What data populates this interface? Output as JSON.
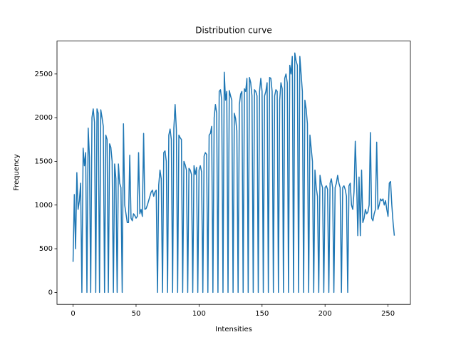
{
  "chart_data": {
    "type": "line",
    "title": "Distribution curve",
    "xlabel": "Intensities",
    "ylabel": "Frequency",
    "color": "#1f77b4",
    "x": [
      0,
      1,
      2,
      3,
      4,
      5,
      6,
      7,
      8,
      9,
      10,
      11,
      12,
      13,
      14,
      15,
      16,
      17,
      18,
      19,
      20,
      21,
      22,
      23,
      24,
      25,
      26,
      27,
      28,
      29,
      30,
      31,
      32,
      33,
      34,
      35,
      36,
      37,
      38,
      39,
      40,
      41,
      42,
      43,
      44,
      45,
      46,
      47,
      48,
      49,
      50,
      51,
      52,
      53,
      54,
      55,
      56,
      57,
      58,
      59,
      60,
      61,
      62,
      63,
      64,
      65,
      66,
      67,
      68,
      69,
      70,
      71,
      72,
      73,
      74,
      75,
      76,
      77,
      78,
      79,
      80,
      81,
      82,
      83,
      84,
      85,
      86,
      87,
      88,
      89,
      90,
      91,
      92,
      93,
      94,
      95,
      96,
      97,
      98,
      99,
      100,
      101,
      102,
      103,
      104,
      105,
      106,
      107,
      108,
      109,
      110,
      111,
      112,
      113,
      114,
      115,
      116,
      117,
      118,
      119,
      120,
      121,
      122,
      123,
      124,
      125,
      126,
      127,
      128,
      129,
      130,
      131,
      132,
      133,
      134,
      135,
      136,
      137,
      138,
      139,
      140,
      141,
      142,
      143,
      144,
      145,
      146,
      147,
      148,
      149,
      150,
      151,
      152,
      153,
      154,
      155,
      156,
      157,
      158,
      159,
      160,
      161,
      162,
      163,
      164,
      165,
      166,
      167,
      168,
      169,
      170,
      171,
      172,
      173,
      174,
      175,
      176,
      177,
      178,
      179,
      180,
      181,
      182,
      183,
      184,
      185,
      186,
      187,
      188,
      189,
      190,
      191,
      192,
      193,
      194,
      195,
      196,
      197,
      198,
      199,
      200,
      201,
      202,
      203,
      204,
      205,
      206,
      207,
      208,
      209,
      210,
      211,
      212,
      213,
      214,
      215,
      216,
      217,
      218,
      219,
      220,
      221,
      222,
      223,
      224,
      225,
      226,
      227,
      228,
      229,
      230,
      231,
      232,
      233,
      234,
      235,
      236,
      237,
      238,
      239,
      240,
      241,
      242,
      243,
      244,
      245,
      246,
      247,
      248,
      249,
      250,
      251,
      252,
      253,
      254,
      255
    ],
    "values": [
      350,
      1120,
      500,
      1370,
      950,
      1050,
      1250,
      0,
      1650,
      1450,
      1600,
      0,
      1880,
      1550,
      0,
      2000,
      2100,
      1950,
      0,
      2100,
      2050,
      0,
      2090,
      2000,
      1900,
      0,
      1800,
      1750,
      0,
      1700,
      1660,
      1500,
      0,
      1470,
      1300,
      0,
      1470,
      1250,
      1200,
      0,
      1930,
      1000,
      900,
      800,
      800,
      1570,
      850,
      820,
      900,
      880,
      850,
      870,
      1600,
      900,
      950,
      870,
      1820,
      950,
      960,
      1000,
      1050,
      1100,
      1150,
      1170,
      1100,
      1150,
      1170,
      0,
      1230,
      1400,
      1300,
      0,
      1600,
      1620,
      1500,
      0,
      1800,
      1870,
      1750,
      0,
      1880,
      2150,
      1860,
      0,
      1800,
      1770,
      1750,
      0,
      1500,
      1460,
      1400,
      0,
      1420,
      1400,
      1350,
      0,
      1450,
      1350,
      1430,
      0,
      1400,
      1450,
      1380,
      0,
      1560,
      1600,
      1580,
      0,
      1800,
      1820,
      1900,
      0,
      2000,
      2150,
      2050,
      0,
      2300,
      2320,
      2200,
      0,
      2520,
      2200,
      2300,
      0,
      2310,
      2250,
      2200,
      0,
      2050,
      1990,
      1850,
      0,
      2150,
      2270,
      2300,
      0,
      2330,
      2300,
      2450,
      0,
      2460,
      2400,
      2250,
      0,
      2320,
      2300,
      2250,
      0,
      2300,
      2450,
      2300,
      0,
      2250,
      2300,
      2400,
      0,
      2460,
      2450,
      2300,
      0,
      2250,
      2320,
      2300,
      0,
      2200,
      2400,
      2330,
      0,
      2450,
      2500,
      2400,
      0,
      2600,
      2500,
      2700,
      0,
      2740,
      2650,
      2600,
      0,
      2700,
      2500,
      2300,
      0,
      2200,
      2100,
      1930,
      0,
      1800,
      1650,
      1500,
      0,
      1400,
      1200,
      1100,
      0,
      1340,
      1250,
      1200,
      0,
      1200,
      1220,
      1180,
      0,
      1250,
      1300,
      1200,
      0,
      1200,
      1250,
      1340,
      1250,
      1200,
      0,
      1200,
      1220,
      1180,
      1100,
      0,
      1220,
      1250,
      1000,
      950,
      1150,
      1730,
      1300,
      650,
      1320,
      650,
      1400,
      800,
      850,
      950,
      900,
      920,
      1000,
      1830,
      850,
      820,
      900,
      950,
      1720,
      950,
      1000,
      1070,
      1050,
      1070,
      1000,
      1050,
      950,
      870,
      1250,
      1270,
      1000,
      800,
      650
    ],
    "xlim": [
      -12.75,
      267.75
    ],
    "xticks": [
      0,
      50,
      100,
      150,
      200,
      250
    ],
    "ylim": [
      -137,
      2877
    ],
    "yticks": [
      0,
      500,
      1000,
      1500,
      2000,
      2500
    ]
  }
}
